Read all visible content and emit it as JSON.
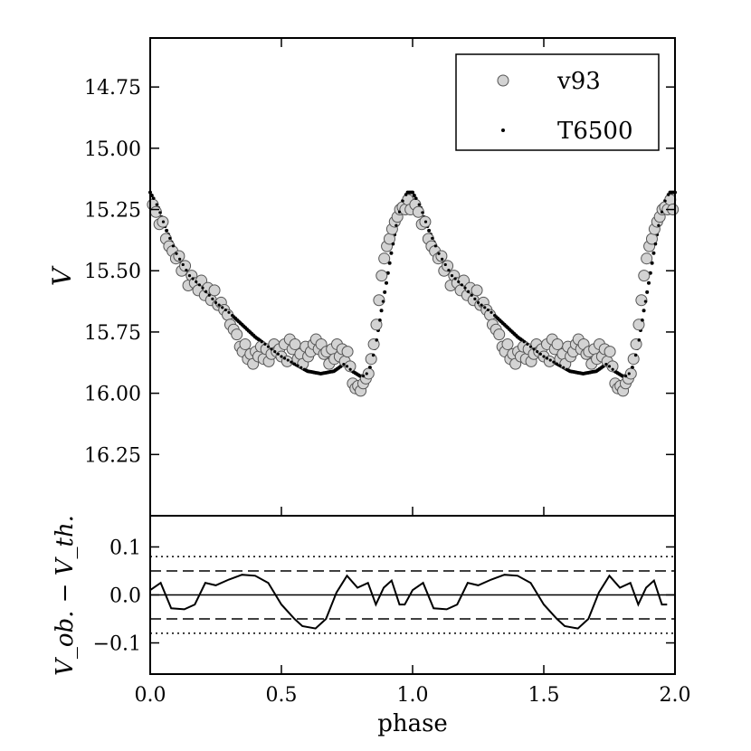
{
  "chart_data": [
    {
      "type": "scatter",
      "panel": "main",
      "ylabel": "V",
      "xlabel": "",
      "xlim": [
        0.0,
        2.0
      ],
      "ylim": [
        16.5,
        14.55
      ],
      "y_inverted": true,
      "yticks": [
        "14.75",
        "15.00",
        "15.25",
        "15.50",
        "15.75",
        "16.00",
        "16.25"
      ],
      "legend": {
        "placement": "top-right",
        "entries": [
          "v93",
          "T6500"
        ]
      },
      "series": [
        {
          "name": "v93",
          "marker": "circle",
          "color": "#d3d3d3",
          "edge_color": "#555555",
          "points": [
            [
              0.01,
              15.23
            ],
            [
              0.022,
              15.26
            ],
            [
              0.035,
              15.31
            ],
            [
              0.048,
              15.3
            ],
            [
              0.06,
              15.37
            ],
            [
              0.072,
              15.4
            ],
            [
              0.085,
              15.42
            ],
            [
              0.098,
              15.45
            ],
            [
              0.11,
              15.44
            ],
            [
              0.12,
              15.5
            ],
            [
              0.133,
              15.48
            ],
            [
              0.145,
              15.56
            ],
            [
              0.158,
              15.52
            ],
            [
              0.17,
              15.55
            ],
            [
              0.183,
              15.58
            ],
            [
              0.195,
              15.54
            ],
            [
              0.208,
              15.6
            ],
            [
              0.22,
              15.57
            ],
            [
              0.232,
              15.62
            ],
            [
              0.245,
              15.58
            ],
            [
              0.258,
              15.64
            ],
            [
              0.27,
              15.63
            ],
            [
              0.282,
              15.66
            ],
            [
              0.295,
              15.68
            ],
            [
              0.305,
              15.72
            ],
            [
              0.318,
              15.74
            ],
            [
              0.33,
              15.76
            ],
            [
              0.342,
              15.81
            ],
            [
              0.352,
              15.83
            ],
            [
              0.362,
              15.8
            ],
            [
              0.372,
              15.86
            ],
            [
              0.382,
              15.84
            ],
            [
              0.392,
              15.88
            ],
            [
              0.402,
              15.83
            ],
            [
              0.412,
              15.85
            ],
            [
              0.422,
              15.81
            ],
            [
              0.432,
              15.86
            ],
            [
              0.442,
              15.82
            ],
            [
              0.452,
              15.87
            ],
            [
              0.462,
              15.84
            ],
            [
              0.472,
              15.8
            ],
            [
              0.482,
              15.83
            ],
            [
              0.492,
              15.82
            ],
            [
              0.5,
              15.85
            ],
            [
              0.512,
              15.8
            ],
            [
              0.522,
              15.87
            ],
            [
              0.532,
              15.78
            ],
            [
              0.542,
              15.82
            ],
            [
              0.552,
              15.8
            ],
            [
              0.562,
              15.86
            ],
            [
              0.572,
              15.84
            ],
            [
              0.582,
              15.88
            ],
            [
              0.592,
              15.81
            ],
            [
              0.602,
              15.85
            ],
            [
              0.612,
              15.83
            ],
            [
              0.622,
              15.8
            ],
            [
              0.632,
              15.78
            ],
            [
              0.642,
              15.82
            ],
            [
              0.652,
              15.8
            ],
            [
              0.662,
              15.84
            ],
            [
              0.672,
              15.83
            ],
            [
              0.682,
              15.88
            ],
            [
              0.692,
              15.82
            ],
            [
              0.702,
              15.86
            ],
            [
              0.712,
              15.8
            ],
            [
              0.722,
              15.85
            ],
            [
              0.732,
              15.82
            ],
            [
              0.742,
              15.87
            ],
            [
              0.752,
              15.83
            ],
            [
              0.762,
              15.89
            ],
            [
              0.772,
              15.96
            ],
            [
              0.782,
              15.98
            ],
            [
              0.792,
              15.97
            ],
            [
              0.802,
              15.99
            ],
            [
              0.812,
              15.96
            ],
            [
              0.822,
              15.94
            ],
            [
              0.832,
              15.92
            ],
            [
              0.842,
              15.86
            ],
            [
              0.852,
              15.8
            ],
            [
              0.862,
              15.72
            ],
            [
              0.872,
              15.62
            ],
            [
              0.882,
              15.52
            ],
            [
              0.892,
              15.45
            ],
            [
              0.902,
              15.4
            ],
            [
              0.912,
              15.37
            ],
            [
              0.922,
              15.33
            ],
            [
              0.932,
              15.3
            ],
            [
              0.942,
              15.28
            ],
            [
              0.952,
              15.25
            ],
            [
              0.962,
              15.24
            ],
            [
              0.972,
              15.25
            ],
            [
              0.982,
              15.21
            ],
            [
              0.992,
              15.25
            ]
          ]
        },
        {
          "name": "T6500",
          "marker": "dot",
          "color": "#000000",
          "knots": [
            [
              0.0,
              15.18
            ],
            [
              0.03,
              15.24
            ],
            [
              0.06,
              15.33
            ],
            [
              0.1,
              15.43
            ],
            [
              0.15,
              15.52
            ],
            [
              0.2,
              15.57
            ],
            [
              0.25,
              15.63
            ],
            [
              0.3,
              15.67
            ],
            [
              0.35,
              15.72
            ],
            [
              0.4,
              15.77
            ],
            [
              0.45,
              15.81
            ],
            [
              0.5,
              15.85
            ],
            [
              0.55,
              15.88
            ],
            [
              0.6,
              15.91
            ],
            [
              0.65,
              15.92
            ],
            [
              0.7,
              15.91
            ],
            [
              0.74,
              15.88
            ],
            [
              0.77,
              15.91
            ],
            [
              0.8,
              15.93
            ],
            [
              0.82,
              15.93
            ],
            [
              0.84,
              15.89
            ],
            [
              0.86,
              15.8
            ],
            [
              0.88,
              15.67
            ],
            [
              0.9,
              15.55
            ],
            [
              0.92,
              15.42
            ],
            [
              0.94,
              15.3
            ],
            [
              0.96,
              15.22
            ],
            [
              0.98,
              15.18
            ],
            [
              1.0,
              15.18
            ]
          ]
        }
      ]
    },
    {
      "type": "line",
      "panel": "residual",
      "xlabel": "phase",
      "ylabel": "V_ob. − V_th.",
      "xlim": [
        0.0,
        2.0
      ],
      "ylim": [
        -0.165,
        0.165
      ],
      "xticks": [
        "0.0",
        "0.5",
        "1.0",
        "1.5",
        "2.0"
      ],
      "yticks": [
        "0.1",
        "0.0",
        "−0.1"
      ],
      "reference_lines": [
        {
          "value": 0.0,
          "style": "solid"
        },
        {
          "value": 0.05,
          "style": "dashed"
        },
        {
          "value": -0.05,
          "style": "dashed"
        },
        {
          "value": 0.08,
          "style": "dotted"
        },
        {
          "value": -0.08,
          "style": "dotted"
        }
      ],
      "series": [
        {
          "name": "",
          "color": "#000000",
          "points": [
            [
              0.0,
              0.01
            ],
            [
              0.04,
              0.025
            ],
            [
              0.08,
              -0.028
            ],
            [
              0.13,
              -0.03
            ],
            [
              0.17,
              -0.02
            ],
            [
              0.21,
              0.025
            ],
            [
              0.25,
              0.02
            ],
            [
              0.3,
              0.032
            ],
            [
              0.35,
              0.042
            ],
            [
              0.4,
              0.04
            ],
            [
              0.45,
              0.025
            ],
            [
              0.5,
              -0.02
            ],
            [
              0.55,
              -0.05
            ],
            [
              0.58,
              -0.065
            ],
            [
              0.63,
              -0.07
            ],
            [
              0.67,
              -0.05
            ],
            [
              0.71,
              0.005
            ],
            [
              0.75,
              0.04
            ],
            [
              0.79,
              0.015
            ],
            [
              0.83,
              0.025
            ],
            [
              0.86,
              -0.02
            ],
            [
              0.89,
              0.015
            ],
            [
              0.92,
              0.03
            ],
            [
              0.95,
              -0.02
            ],
            [
              0.97,
              -0.02
            ]
          ]
        }
      ]
    }
  ]
}
